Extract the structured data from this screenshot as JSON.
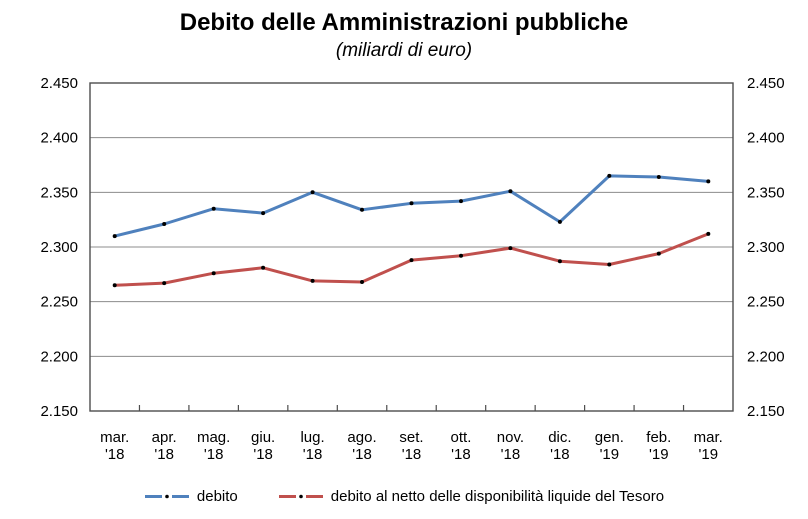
{
  "title": "Debito delle Amministrazioni pubbliche",
  "subtitle": "(miliardi di euro)",
  "chart_data": {
    "type": "line",
    "categories": [
      {
        "month": "mar.",
        "year": "'18"
      },
      {
        "month": "apr.",
        "year": "'18"
      },
      {
        "month": "mag.",
        "year": "'18"
      },
      {
        "month": "giu.",
        "year": "'18"
      },
      {
        "month": "lug.",
        "year": "'18"
      },
      {
        "month": "ago.",
        "year": "'18"
      },
      {
        "month": "set.",
        "year": "'18"
      },
      {
        "month": "ott.",
        "year": "'18"
      },
      {
        "month": "nov.",
        "year": "'18"
      },
      {
        "month": "dic.",
        "year": "'18"
      },
      {
        "month": "gen.",
        "year": "'19"
      },
      {
        "month": "feb.",
        "year": "'19"
      },
      {
        "month": "mar.",
        "year": "'19"
      }
    ],
    "series": [
      {
        "name": "debito",
        "color": "#4f81bd",
        "values": [
          2310,
          2321,
          2335,
          2331,
          2350,
          2334,
          2340,
          2342,
          2351,
          2323,
          2365,
          2364,
          2360
        ]
      },
      {
        "name": "debito al netto delle disponibilità liquide del Tesoro",
        "color": "#c0504d",
        "values": [
          2265,
          2267,
          2276,
          2281,
          2269,
          2268,
          2288,
          2292,
          2299,
          2287,
          2284,
          2294,
          2312
        ]
      }
    ],
    "y_axis": {
      "min": 2150,
      "max": 2450,
      "step": 50,
      "tick_labels": [
        "2.150",
        "2.200",
        "2.250",
        "2.300",
        "2.350",
        "2.400",
        "2.450"
      ]
    },
    "marker_color": "#000000",
    "gridline_color": "#8c8c8c",
    "axis_color": "#4d4d4d",
    "legend_position": "bottom",
    "grid": true
  }
}
